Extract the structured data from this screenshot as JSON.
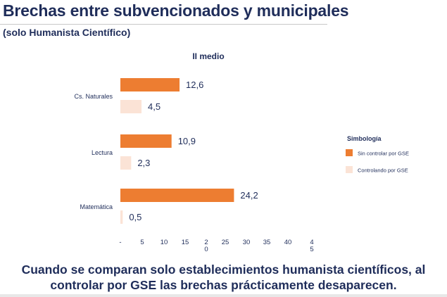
{
  "header": {
    "title": "Brechas entre subvencionados y municipales",
    "subtitle": "(solo Humanista Científico)"
  },
  "caption": {
    "line1": "Cuando se comparan solo establecimientos humanista científicos, al",
    "line2": "controlar por GSE las brechas prácticamente desaparecen."
  },
  "colors": {
    "series_sin": "#ed7d31",
    "series_con": "#fbe3d6",
    "text": "#1f2d5a"
  },
  "chart_data": {
    "type": "bar",
    "orientation": "horizontal",
    "title": "II medio",
    "categories": [
      "Cs. Naturales",
      "Lectura",
      "Matemática"
    ],
    "series": [
      {
        "name": "Sin controlar por GSE",
        "values": [
          12.6,
          10.9,
          24.2
        ],
        "labels": [
          "12,6",
          "10,9",
          "24,2"
        ]
      },
      {
        "name": "Controlando por GSE",
        "values": [
          4.5,
          2.3,
          0.5
        ],
        "labels": [
          "4,5",
          "2,3",
          "0,5"
        ]
      }
    ],
    "xticks": [
      "-",
      "5",
      "10",
      "15",
      "2\n0",
      "25",
      "30",
      "35",
      "40",
      "4\n5"
    ],
    "xlim": [
      0,
      45
    ],
    "grid": false,
    "legend": {
      "title": "Simbología",
      "position": "right"
    }
  }
}
